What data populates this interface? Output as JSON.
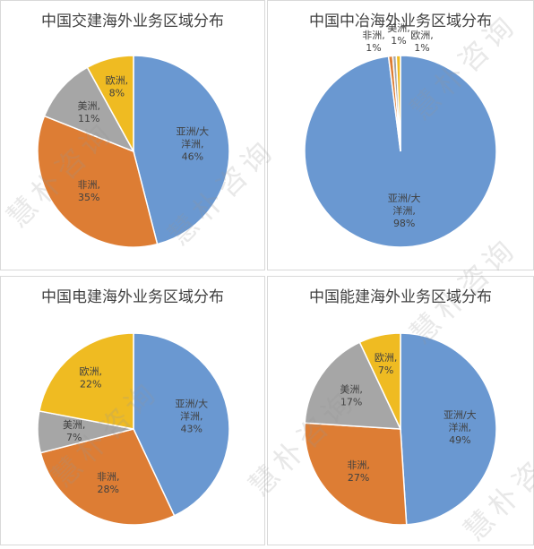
{
  "watermark": "慧朴咨询",
  "colors": {
    "asia": "#6a98d1",
    "africa": "#dd7d34",
    "america": "#a6a6a6",
    "europe": "#efbb22"
  },
  "chart_data": [
    {
      "type": "pie",
      "title": "中国交建海外业务区域分布",
      "slices": [
        {
          "name": "亚洲/大洋洲",
          "label_lines": [
            "亚洲/大",
            "洋洲,",
            "46%"
          ],
          "value": 46,
          "color": "#6a98d1"
        },
        {
          "name": "非洲",
          "label_lines": [
            "非洲,",
            "35%"
          ],
          "value": 35,
          "color": "#dd7d34"
        },
        {
          "name": "美洲",
          "label_lines": [
            "美洲,",
            "11%"
          ],
          "value": 11,
          "color": "#a6a6a6"
        },
        {
          "name": "欧洲",
          "label_lines": [
            "欧洲,",
            "8%"
          ],
          "value": 8,
          "color": "#efbb22"
        }
      ]
    },
    {
      "type": "pie",
      "title": "中国中冶海外业务区域分布",
      "slices": [
        {
          "name": "亚洲/大洋洲",
          "label_lines": [
            "亚洲/大",
            "洋洲,",
            "98%"
          ],
          "value": 98,
          "color": "#6a98d1"
        },
        {
          "name": "非洲",
          "label_lines": [
            "非洲,",
            "1%"
          ],
          "value": 0.7,
          "color": "#dd7d34"
        },
        {
          "name": "美洲",
          "label_lines": [
            "美洲,",
            "1%"
          ],
          "value": 0.6,
          "color": "#a6a6a6"
        },
        {
          "name": "欧洲",
          "label_lines": [
            "欧洲,",
            "1%"
          ],
          "value": 0.7,
          "color": "#efbb22"
        }
      ]
    },
    {
      "type": "pie",
      "title": "中国电建海外业务区域分布",
      "slices": [
        {
          "name": "亚洲/大洋洲",
          "label_lines": [
            "亚洲/大",
            "洋洲,",
            "43%"
          ],
          "value": 43,
          "color": "#6a98d1"
        },
        {
          "name": "非洲",
          "label_lines": [
            "非洲,",
            "28%"
          ],
          "value": 28,
          "color": "#dd7d34"
        },
        {
          "name": "美洲",
          "label_lines": [
            "美洲,",
            "7%"
          ],
          "value": 7,
          "color": "#a6a6a6"
        },
        {
          "name": "欧洲",
          "label_lines": [
            "欧洲,",
            "22%"
          ],
          "value": 22,
          "color": "#efbb22"
        }
      ]
    },
    {
      "type": "pie",
      "title": "中国能建海外业务区域分布",
      "slices": [
        {
          "name": "亚洲/大洋洲",
          "label_lines": [
            "亚洲/大",
            "洋洲,",
            "49%"
          ],
          "value": 49,
          "color": "#6a98d1"
        },
        {
          "name": "非洲",
          "label_lines": [
            "非洲,",
            "27%"
          ],
          "value": 27,
          "color": "#dd7d34"
        },
        {
          "name": "美洲",
          "label_lines": [
            "美洲,",
            "17%"
          ],
          "value": 17,
          "color": "#a6a6a6"
        },
        {
          "name": "欧洲",
          "label_lines": [
            "欧洲,",
            "7%"
          ],
          "value": 7,
          "color": "#efbb22"
        }
      ]
    }
  ]
}
